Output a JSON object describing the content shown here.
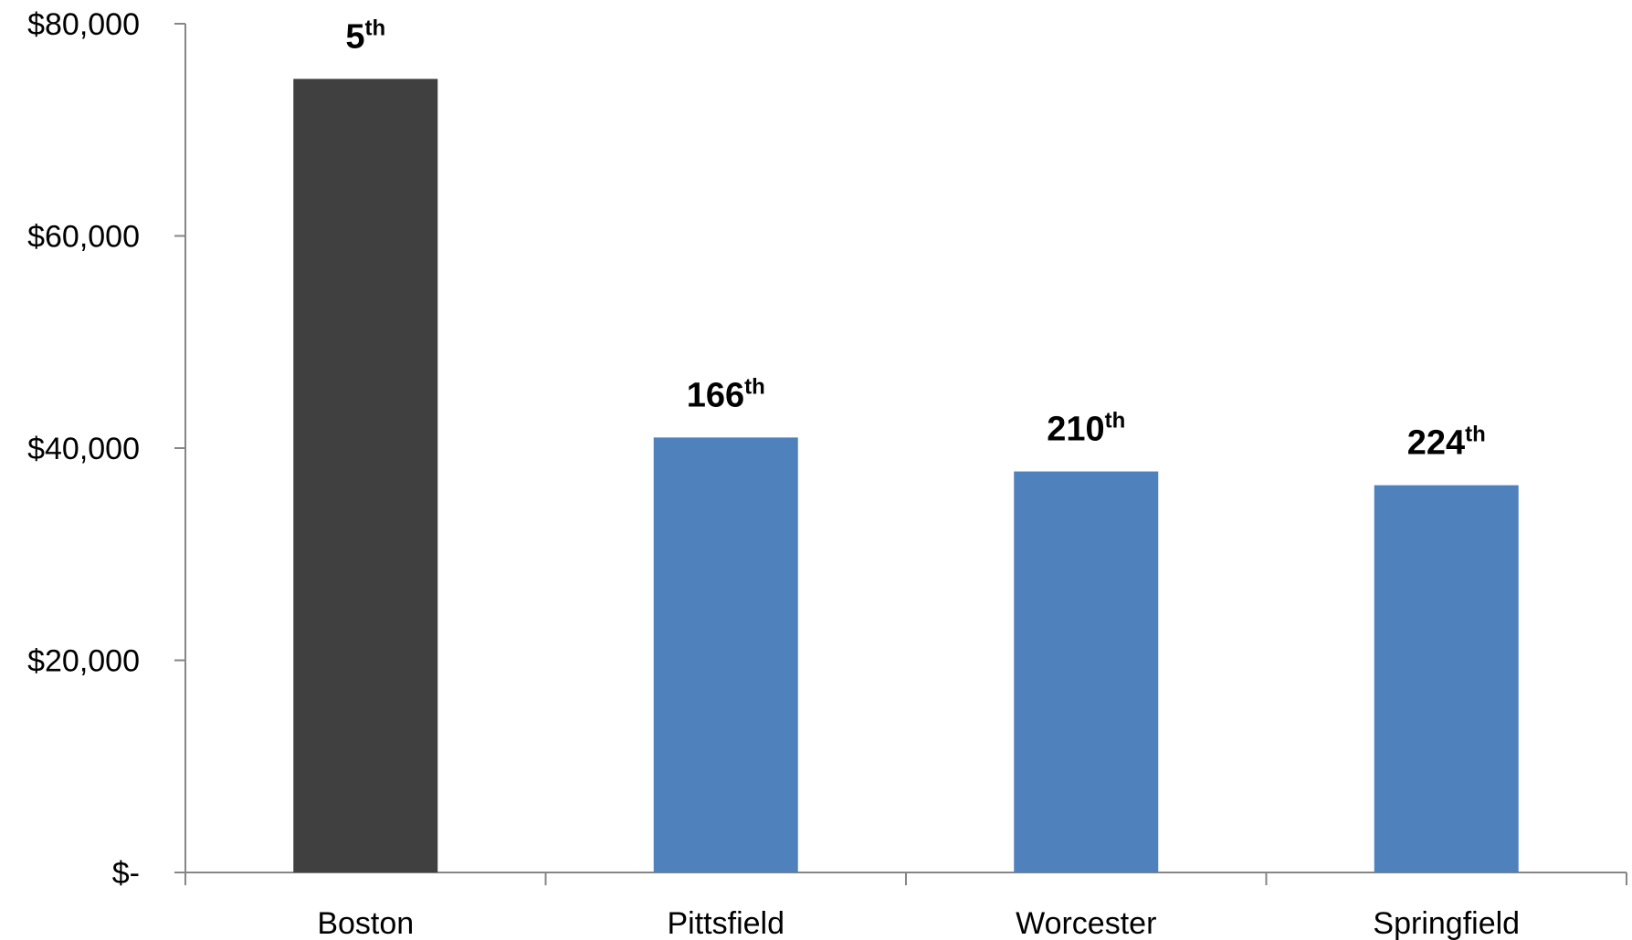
{
  "chart_data": {
    "type": "bar",
    "categories": [
      "Boston",
      "Pittsfield",
      "Worcester",
      "Springfield"
    ],
    "values": [
      74800,
      41000,
      37800,
      36500
    ],
    "data_labels": [
      {
        "number": "5",
        "suffix": "th"
      },
      {
        "number": "166",
        "suffix": "th"
      },
      {
        "number": "210",
        "suffix": "th"
      },
      {
        "number": "224",
        "suffix": "th"
      }
    ],
    "bar_colors": [
      "#404040",
      "#4f81bd",
      "#4f81bd",
      "#4f81bd"
    ],
    "y_ticks": [
      {
        "value": 0,
        "label": "$-"
      },
      {
        "value": 20000,
        "label": "$20,000"
      },
      {
        "value": 40000,
        "label": "$40,000"
      },
      {
        "value": 60000,
        "label": "$60,000"
      },
      {
        "value": 80000,
        "label": "$80,000"
      }
    ],
    "title": "",
    "xlabel": "",
    "ylabel": "",
    "ylim": [
      0,
      80000
    ],
    "grid": false,
    "legend": "none"
  }
}
